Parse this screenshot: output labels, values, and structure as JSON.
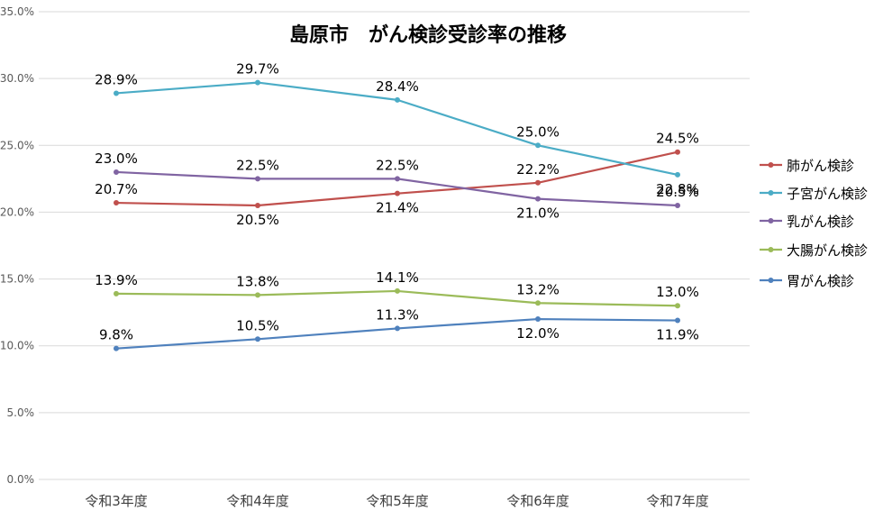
{
  "chart_data": {
    "type": "line",
    "title": "島原市　がん検診受診率の推移",
    "categories": [
      "令和3年度",
      "令和4年度",
      "令和5年度",
      "令和6年度",
      "令和7年度"
    ],
    "ylim": [
      0,
      35
    ],
    "ytick_step": 5,
    "yticks": [
      "0.0%",
      "5.0%",
      "10.0%",
      "15.0%",
      "20.0%",
      "25.0%",
      "30.0%",
      "35.0%"
    ],
    "grid": true,
    "legend_position": "right",
    "series": [
      {
        "name": "肺がん検診",
        "color": "#C0504D",
        "values": [
          20.7,
          20.5,
          21.4,
          22.2,
          24.5
        ],
        "labels": [
          "20.7%",
          "20.5%",
          "21.4%",
          "22.2%",
          "24.5%"
        ]
      },
      {
        "name": "子宮がん検診",
        "color": "#4BACC6",
        "values": [
          28.9,
          29.7,
          28.4,
          25.0,
          22.8
        ],
        "labels": [
          "28.9%",
          "29.7%",
          "28.4%",
          "25.0%",
          "22.8%"
        ]
      },
      {
        "name": "乳がん検診",
        "color": "#8064A2",
        "values": [
          23.0,
          22.5,
          22.5,
          21.0,
          20.5
        ],
        "labels": [
          "23.0%",
          "22.5%",
          "22.5%",
          "21.0%",
          "20.5%"
        ]
      },
      {
        "name": "大腸がん検診",
        "color": "#9BBB59",
        "values": [
          13.9,
          13.8,
          14.1,
          13.2,
          13.0
        ],
        "labels": [
          "13.9%",
          "13.8%",
          "14.1%",
          "13.2%",
          "13.0%"
        ]
      },
      {
        "name": "胃がん検診",
        "color": "#4F81BD",
        "values": [
          9.8,
          10.5,
          11.3,
          12.0,
          11.9
        ],
        "labels": [
          "9.8%",
          "10.5%",
          "11.3%",
          "12.0%",
          "11.9%"
        ]
      }
    ]
  }
}
